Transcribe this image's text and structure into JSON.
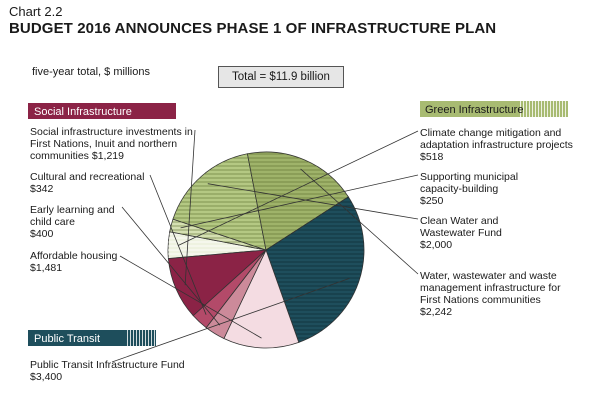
{
  "chart_data": {
    "type": "pie",
    "chart_number": "Chart 2.2",
    "title": "BUDGET 2016 ANNOUNCES PHASE 1 OF INFRASTRUCTURE PLAN",
    "subtitle": "five-year total, $ millions",
    "total_label": "Total = $11.9 billion",
    "categories": [
      {
        "name": "Social Infrastructure",
        "color": "#8b2346"
      },
      {
        "name": "Green Infrastructure",
        "color": "#a8bb72"
      },
      {
        "name": "Public Transit",
        "color": "#1e4e5c"
      }
    ],
    "slices": [
      {
        "group": "Green Infrastructure",
        "label": [
          "Climate change mitigation and",
          "adaptation infrastructure projects"
        ],
        "value_text": "$518",
        "value": 518,
        "color": "#eef2e0",
        "hatch": true
      },
      {
        "group": "Green Infrastructure",
        "label": [
          "Supporting municipal",
          "capacity-building"
        ],
        "value_text": "$250",
        "value": 250,
        "color": "#d5e0b2",
        "hatch": true
      },
      {
        "group": "Green Infrastructure",
        "label": [
          "Clean Water and",
          "Wastewater Fund"
        ],
        "value_text": "$2,000",
        "value": 2000,
        "color": "#b4c883",
        "hatch": true
      },
      {
        "group": "Green Infrastructure",
        "label": [
          "Water, wastewater and waste",
          "management infrastructure for",
          "First Nations communities"
        ],
        "value_text": "$2,242",
        "value": 2242,
        "color": "#9fb36a",
        "hatch": true
      },
      {
        "group": "Public Transit",
        "label": [
          "Public Transit Infrastructure Fund"
        ],
        "value_text": "$3,400",
        "value": 3400,
        "color": "#1e4e5c",
        "hatch": true
      },
      {
        "group": "Social Infrastructure",
        "label": [
          "Affordable housing"
        ],
        "value_text": "$1,481",
        "value": 1481,
        "color": "#f4dce2",
        "hatch": false
      },
      {
        "group": "Social Infrastructure",
        "label": [
          "Early learning and",
          "child care"
        ],
        "value_text": "$400",
        "value": 400,
        "color": "#cc8a9a",
        "hatch": false
      },
      {
        "group": "Social Infrastructure",
        "label": [
          "Cultural and recreational"
        ],
        "value_text": "$342",
        "value": 342,
        "color": "#b34a69",
        "hatch": false
      },
      {
        "group": "Social Infrastructure",
        "label": [
          "Social infrastructure investments in",
          "First Nations, Inuit and northern",
          "communities"
        ],
        "value_text": "$1,219",
        "value": 1219,
        "color": "#8b2346",
        "hatch": false
      }
    ]
  }
}
